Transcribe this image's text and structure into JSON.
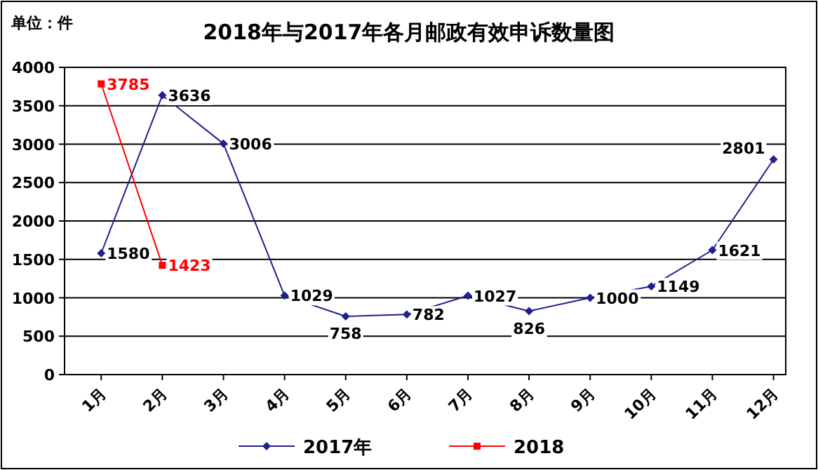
{
  "chart_data": {
    "type": "line",
    "title": "2018年与2017年各月邮政有效申诉数量图",
    "annotations": [
      "单位：件"
    ],
    "categories": [
      "1月",
      "2月",
      "3月",
      "4月",
      "5月",
      "6月",
      "7月",
      "8月",
      "9月",
      "10月",
      "11月",
      "12月"
    ],
    "series": [
      {
        "name": "2017年",
        "color": "#1f1f8f",
        "marker": "diamond",
        "values": [
          1580,
          3636,
          3006,
          1029,
          758,
          782,
          1027,
          826,
          1000,
          1149,
          1621,
          2801
        ]
      },
      {
        "name": "2018",
        "color": "#ff0000",
        "marker": "square",
        "values": [
          3785,
          1423,
          null,
          null,
          null,
          null,
          null,
          null,
          null,
          null,
          null,
          null
        ]
      }
    ],
    "ylim": [
      0,
      4000
    ],
    "yticks": [
      0,
      500,
      1000,
      1500,
      2000,
      2500,
      3000,
      3500,
      4000
    ],
    "grid": "y",
    "legend": "bottom",
    "data_labels": true
  }
}
